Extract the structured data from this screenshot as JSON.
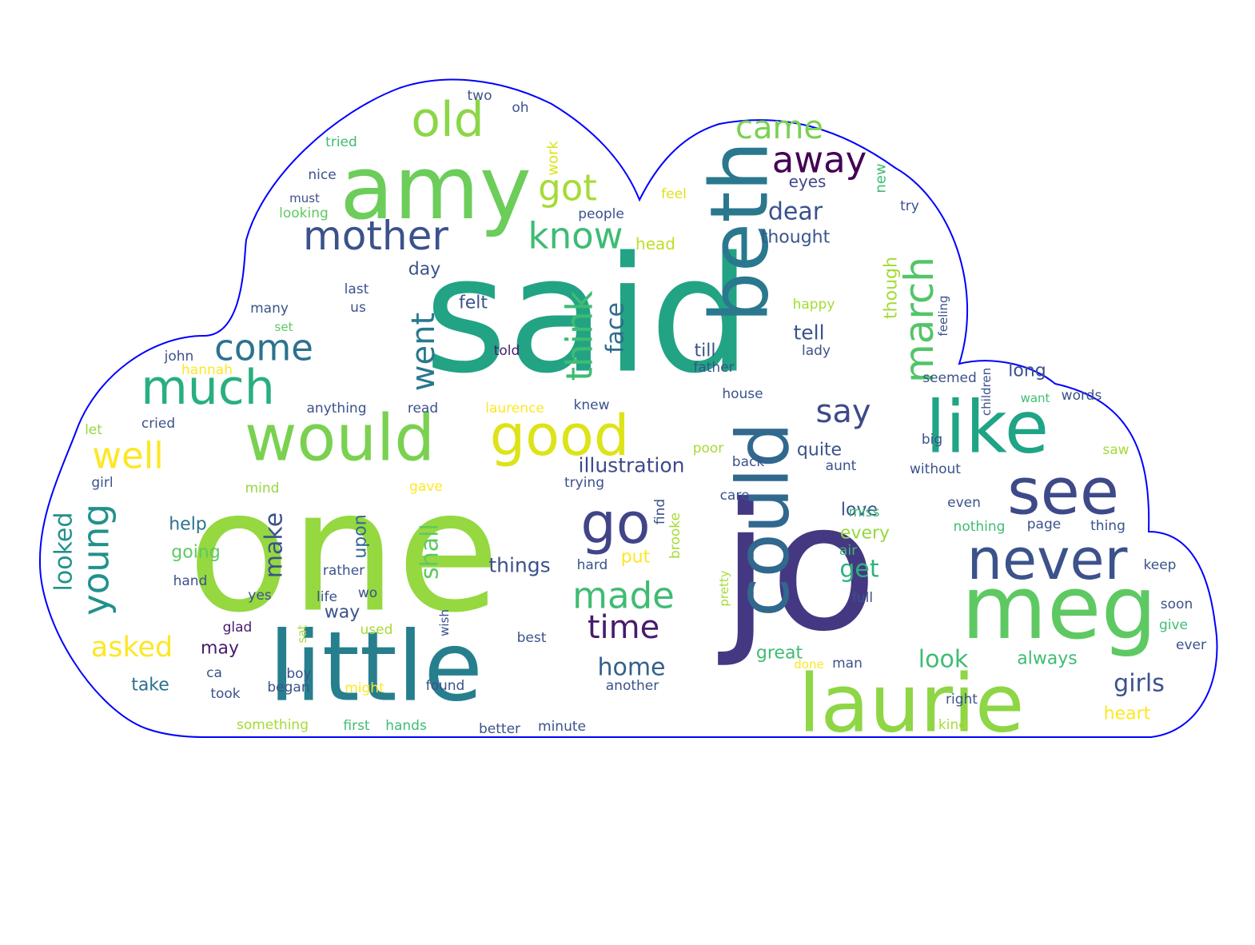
{
  "colors": {
    "outline": "#0000ff",
    "background": "#ffffff"
  },
  "words": [
    {
      "text": "said",
      "color": "#22a384"
    },
    {
      "text": "one",
      "color": "#95d840"
    },
    {
      "text": "jo",
      "color": "#453882"
    },
    {
      "text": "little",
      "color": "#277f8e"
    },
    {
      "text": "would",
      "color": "#7ad151"
    },
    {
      "text": "amy",
      "color": "#6ccd5a"
    },
    {
      "text": "beth",
      "color": "#2a788e"
    },
    {
      "text": "laurie",
      "color": "#8ed645"
    },
    {
      "text": "meg",
      "color": "#5ec962"
    },
    {
      "text": "like",
      "color": "#20a486"
    },
    {
      "text": "could",
      "color": "#31688e"
    },
    {
      "text": "see",
      "color": "#3e4989"
    },
    {
      "text": "never",
      "color": "#3b528b"
    },
    {
      "text": "good",
      "color": "#dde318"
    },
    {
      "text": "much",
      "color": "#29af7f"
    },
    {
      "text": "go",
      "color": "#414487"
    },
    {
      "text": "old",
      "color": "#8bd646"
    },
    {
      "text": "mother",
      "color": "#3b528b"
    },
    {
      "text": "march",
      "color": "#52c569"
    },
    {
      "text": "think",
      "color": "#3fbc73"
    },
    {
      "text": "went",
      "color": "#2a788e"
    },
    {
      "text": "away",
      "color": "#440154"
    },
    {
      "text": "came",
      "color": "#7ad151"
    },
    {
      "text": "know",
      "color": "#3dbc74"
    },
    {
      "text": "got",
      "color": "#a5db36"
    },
    {
      "text": "come",
      "color": "#2c728e"
    },
    {
      "text": "well",
      "color": "#fde725"
    },
    {
      "text": "made",
      "color": "#3fbc73"
    },
    {
      "text": "young",
      "color": "#21918c"
    },
    {
      "text": "time",
      "color": "#481b6d"
    },
    {
      "text": "face",
      "color": "#2f6c8e"
    },
    {
      "text": "say",
      "color": "#3e4989"
    },
    {
      "text": "dear",
      "color": "#3b528b"
    },
    {
      "text": "home",
      "color": "#35608d"
    },
    {
      "text": "asked",
      "color": "#fde725"
    },
    {
      "text": "looked",
      "color": "#21918c"
    },
    {
      "text": "shall",
      "color": "#5ec962"
    },
    {
      "text": "girls",
      "color": "#3b528b"
    },
    {
      "text": "look",
      "color": "#3fbc73"
    },
    {
      "text": "get",
      "color": "#2db27d"
    },
    {
      "text": "make",
      "color": "#3b528b"
    },
    {
      "text": "illustration",
      "color": "#3e4989"
    },
    {
      "text": "things",
      "color": "#3b528b"
    },
    {
      "text": "though",
      "color": "#a5db36"
    },
    {
      "text": "eyes",
      "color": "#3e4989"
    },
    {
      "text": "thought",
      "color": "#39568c"
    },
    {
      "text": "head",
      "color": "#bddf26"
    },
    {
      "text": "tell",
      "color": "#3b528b"
    },
    {
      "text": "till",
      "color": "#3b528b"
    },
    {
      "text": "day",
      "color": "#3b528b"
    },
    {
      "text": "felt",
      "color": "#3b528b"
    },
    {
      "text": "long",
      "color": "#3b528b"
    },
    {
      "text": "quite",
      "color": "#3b528b"
    },
    {
      "text": "help",
      "color": "#2c728e"
    },
    {
      "text": "going",
      "color": "#5ec962"
    },
    {
      "text": "upon",
      "color": "#31688e"
    },
    {
      "text": "put",
      "color": "#fde725"
    },
    {
      "text": "every",
      "color": "#95d840"
    },
    {
      "text": "love",
      "color": "#3b528b"
    },
    {
      "text": "always",
      "color": "#3fbc73"
    },
    {
      "text": "great",
      "color": "#3fbc73"
    },
    {
      "text": "heart",
      "color": "#fde725"
    },
    {
      "text": "take",
      "color": "#2c728e"
    },
    {
      "text": "may",
      "color": "#481b6d"
    },
    {
      "text": "way",
      "color": "#3b528b"
    },
    {
      "text": "work",
      "color": "#dde318"
    },
    {
      "text": "new",
      "color": "#3fbc73"
    },
    {
      "text": "two",
      "color": "#3b528b"
    },
    {
      "text": "oh",
      "color": "#3b528b"
    },
    {
      "text": "tried",
      "color": "#3fbc73"
    },
    {
      "text": "nice",
      "color": "#3b528b"
    },
    {
      "text": "must",
      "color": "#3b528b"
    },
    {
      "text": "looking",
      "color": "#5ec962"
    },
    {
      "text": "feel",
      "color": "#dde318"
    },
    {
      "text": "people",
      "color": "#3b528b"
    },
    {
      "text": "try",
      "color": "#3b528b"
    },
    {
      "text": "last",
      "color": "#3b528b"
    },
    {
      "text": "us",
      "color": "#3b528b"
    },
    {
      "text": "many",
      "color": "#3b528b"
    },
    {
      "text": "set",
      "color": "#5ec962"
    },
    {
      "text": "happy",
      "color": "#a5db36"
    },
    {
      "text": "feeling",
      "color": "#3b528b"
    },
    {
      "text": "told",
      "color": "#481b6d"
    },
    {
      "text": "lady",
      "color": "#3b528b"
    },
    {
      "text": "john",
      "color": "#3b528b"
    },
    {
      "text": "hannah",
      "color": "#fde725"
    },
    {
      "text": "father",
      "color": "#3b528b"
    },
    {
      "text": "seemed",
      "color": "#3b528b"
    },
    {
      "text": "children",
      "color": "#3b528b"
    },
    {
      "text": "house",
      "color": "#3b528b"
    },
    {
      "text": "want",
      "color": "#3fbc73"
    },
    {
      "text": "words",
      "color": "#3b528b"
    },
    {
      "text": "anything",
      "color": "#3b528b"
    },
    {
      "text": "read",
      "color": "#3b528b"
    },
    {
      "text": "laurence",
      "color": "#fde725"
    },
    {
      "text": "knew",
      "color": "#3b528b"
    },
    {
      "text": "cried",
      "color": "#3b528b"
    },
    {
      "text": "let",
      "color": "#95d840"
    },
    {
      "text": "big",
      "color": "#3b528b"
    },
    {
      "text": "poor",
      "color": "#a5db36"
    },
    {
      "text": "back",
      "color": "#3b528b"
    },
    {
      "text": "aunt",
      "color": "#3b528b"
    },
    {
      "text": "without",
      "color": "#3b528b"
    },
    {
      "text": "saw",
      "color": "#a5db36"
    },
    {
      "text": "girl",
      "color": "#3b528b"
    },
    {
      "text": "gave",
      "color": "#fde725"
    },
    {
      "text": "trying",
      "color": "#3b528b"
    },
    {
      "text": "mind",
      "color": "#95d840"
    },
    {
      "text": "care",
      "color": "#3b528b"
    },
    {
      "text": "find",
      "color": "#3b528b"
    },
    {
      "text": "brooke",
      "color": "#a5db36"
    },
    {
      "text": "miss",
      "color": "#3fbc73"
    },
    {
      "text": "even",
      "color": "#3b528b"
    },
    {
      "text": "nothing",
      "color": "#3fbc73"
    },
    {
      "text": "page",
      "color": "#3b528b"
    },
    {
      "text": "thing",
      "color": "#3b528b"
    },
    {
      "text": "rather",
      "color": "#3b528b"
    },
    {
      "text": "hand",
      "color": "#3b528b"
    },
    {
      "text": "hard",
      "color": "#3b528b"
    },
    {
      "text": "pretty",
      "color": "#a5db36"
    },
    {
      "text": "air",
      "color": "#3fbc73"
    },
    {
      "text": "keep",
      "color": "#3b528b"
    },
    {
      "text": "yes",
      "color": "#3b528b"
    },
    {
      "text": "life",
      "color": "#3b528b"
    },
    {
      "text": "wo",
      "color": "#3b528b"
    },
    {
      "text": "full",
      "color": "#3b528b"
    },
    {
      "text": "glad",
      "color": "#481b6d"
    },
    {
      "text": "used",
      "color": "#a5db36"
    },
    {
      "text": "wish",
      "color": "#3b528b"
    },
    {
      "text": "soon",
      "color": "#3b528b"
    },
    {
      "text": "give",
      "color": "#3fbc73"
    },
    {
      "text": "best",
      "color": "#3b528b"
    },
    {
      "text": "ever",
      "color": "#3b528b"
    },
    {
      "text": "sat",
      "color": "#a5db36"
    },
    {
      "text": "ca",
      "color": "#3b528b"
    },
    {
      "text": "done",
      "color": "#fde725"
    },
    {
      "text": "man",
      "color": "#3b528b"
    },
    {
      "text": "took",
      "color": "#3b528b"
    },
    {
      "text": "began",
      "color": "#3b528b"
    },
    {
      "text": "boy",
      "color": "#3b528b"
    },
    {
      "text": "might",
      "color": "#fde725"
    },
    {
      "text": "found",
      "color": "#3b528b"
    },
    {
      "text": "another",
      "color": "#3b528b"
    },
    {
      "text": "right",
      "color": "#3b528b"
    },
    {
      "text": "something",
      "color": "#a5db36"
    },
    {
      "text": "first",
      "color": "#3fbc73"
    },
    {
      "text": "hands",
      "color": "#3fbc73"
    },
    {
      "text": "better",
      "color": "#3b528b"
    },
    {
      "text": "minute",
      "color": "#3b528b"
    },
    {
      "text": "kind",
      "color": "#a5db36"
    }
  ]
}
